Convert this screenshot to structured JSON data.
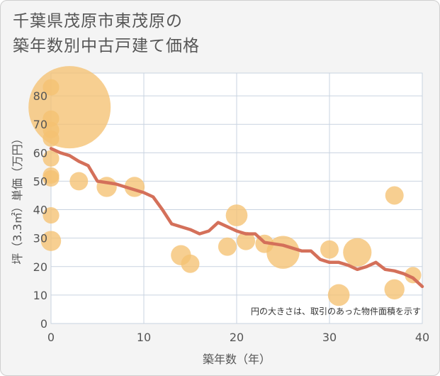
{
  "title_lines": [
    "千葉県茂原市東茂原の",
    "築年数別中古戸建て価格"
  ],
  "chart_data": {
    "type": "scatter",
    "title": "千葉県茂原市東茂原の築年数別中古戸建て価格",
    "xlabel": "築年数（年）",
    "ylabel": "坪（3.3㎡）単価（万円）",
    "xlim": [
      0,
      40
    ],
    "ylim": [
      0,
      88
    ],
    "xticks": [
      0,
      10,
      20,
      30,
      40
    ],
    "yticks": [
      0,
      10,
      20,
      30,
      40,
      50,
      60,
      70,
      80
    ],
    "grid": true,
    "annotation": "円の大きさは、取引のあった物件面積を示す",
    "colors": {
      "bubble": "#f5c272",
      "line": "#d4705a",
      "grid": "#c9d3e0",
      "axis_text": "#555555"
    },
    "bubbles": [
      {
        "x": 0,
        "y": 83,
        "size": 4
      },
      {
        "x": 0,
        "y": 72,
        "size": 4
      },
      {
        "x": 0,
        "y": 68,
        "size": 4
      },
      {
        "x": 0,
        "y": 65,
        "size": 4
      },
      {
        "x": 0,
        "y": 58,
        "size": 4
      },
      {
        "x": 0,
        "y": 52,
        "size": 4
      },
      {
        "x": 0,
        "y": 51,
        "size": 4
      },
      {
        "x": 0,
        "y": 38,
        "size": 4
      },
      {
        "x": 0,
        "y": 29,
        "size": 6
      },
      {
        "x": 2,
        "y": 76,
        "size": 100
      },
      {
        "x": 3,
        "y": 50,
        "size": 5
      },
      {
        "x": 6,
        "y": 48,
        "size": 6
      },
      {
        "x": 9,
        "y": 48,
        "size": 6
      },
      {
        "x": 14,
        "y": 24,
        "size": 6
      },
      {
        "x": 15,
        "y": 21,
        "size": 5
      },
      {
        "x": 19,
        "y": 27,
        "size": 5
      },
      {
        "x": 20,
        "y": 38,
        "size": 7
      },
      {
        "x": 21,
        "y": 29,
        "size": 5
      },
      {
        "x": 23,
        "y": 28,
        "size": 5
      },
      {
        "x": 25,
        "y": 25,
        "size": 16
      },
      {
        "x": 30,
        "y": 26,
        "size": 5
      },
      {
        "x": 31,
        "y": 10,
        "size": 7
      },
      {
        "x": 33,
        "y": 25,
        "size": 12
      },
      {
        "x": 37,
        "y": 45,
        "size": 5
      },
      {
        "x": 37,
        "y": 12,
        "size": 6
      },
      {
        "x": 39,
        "y": 17,
        "size": 4
      }
    ],
    "trend": {
      "x": [
        0,
        1,
        2,
        3,
        4,
        5,
        6,
        7,
        8,
        9,
        10,
        11,
        12,
        13,
        14,
        15,
        16,
        17,
        18,
        19,
        20,
        21,
        22,
        23,
        24,
        25,
        26,
        27,
        28,
        29,
        30,
        31,
        32,
        33,
        34,
        35,
        36,
        37,
        38,
        39,
        40
      ],
      "y": [
        61.5,
        60,
        59,
        57,
        55.5,
        50,
        49.5,
        49,
        48,
        47,
        46,
        44.5,
        40,
        35,
        34,
        33,
        31.5,
        32.5,
        35.5,
        34,
        32.5,
        31.5,
        31.5,
        28.5,
        28,
        27.5,
        26.5,
        25.5,
        25.5,
        22.5,
        21.5,
        21.5,
        20.5,
        19,
        20,
        21.5,
        19,
        18.5,
        17.5,
        16,
        13
      ]
    }
  }
}
